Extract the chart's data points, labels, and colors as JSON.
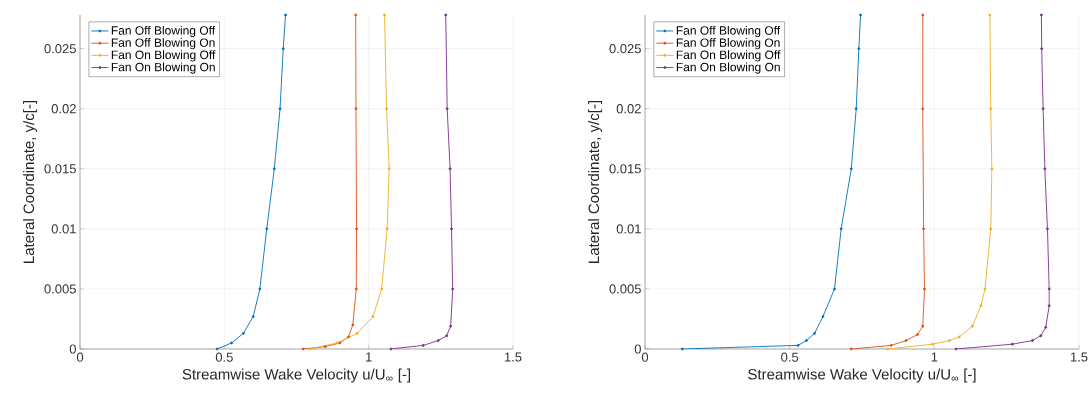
{
  "chart_data": [
    {
      "type": "line",
      "xlabel": "Streamwise Wake Velocity u/U$_{∞}$ [-]",
      "ylabel": "Lateral Coordinate, y/c[-]",
      "xlim": [
        0,
        1.5
      ],
      "ylim": [
        0,
        0.0278
      ],
      "xticks": [
        0,
        0.5,
        1,
        1.5
      ],
      "yticks": [
        0,
        0.005,
        0.01,
        0.015,
        0.02,
        0.025
      ],
      "grid": true,
      "legend": "top left",
      "marker": "circle",
      "line_style": "solid",
      "series": [
        {
          "name": "Fan Off Blowing Off",
          "color": "#0072bd",
          "x": [
            0.475,
            0.525,
            0.566,
            0.6,
            0.623,
            0.647,
            0.673,
            0.693,
            0.704,
            0.712
          ],
          "values": [
            0,
            0.0005,
            0.0013,
            0.0027,
            0.005,
            0.01,
            0.015,
            0.02,
            0.025,
            0.0278
          ]
        },
        {
          "name": "Fan Off Blowing On",
          "color": "#d95319",
          "x": [
            0.773,
            0.85,
            0.9,
            0.93,
            0.945,
            0.957,
            0.958,
            0.956,
            0.955
          ],
          "values": [
            0,
            0.0002,
            0.0005,
            0.001,
            0.002,
            0.005,
            0.01,
            0.02,
            0.0278
          ]
        },
        {
          "name": "Fan On Blowing Off",
          "color": "#edb120",
          "x": [
            0.797,
            0.89,
            0.96,
            1.015,
            1.045,
            1.064,
            1.071,
            1.062,
            1.055
          ],
          "values": [
            0,
            0.0005,
            0.0013,
            0.0027,
            0.005,
            0.01,
            0.015,
            0.02,
            0.0278
          ]
        },
        {
          "name": "Fan On Blowing On",
          "color": "#7e2f8e",
          "x": [
            1.077,
            1.189,
            1.241,
            1.27,
            1.284,
            1.291,
            1.287,
            1.282,
            1.272,
            1.267
          ],
          "values": [
            0,
            0.0003,
            0.0007,
            0.0011,
            0.0019,
            0.005,
            0.01,
            0.015,
            0.02,
            0.0278
          ]
        }
      ]
    },
    {
      "type": "line",
      "xlabel": "Streamwise Wake Velocity u/U$_{∞}$ [-]",
      "ylabel": "Lateral Coordinate, y/c[-]",
      "xlim": [
        0,
        1.5
      ],
      "ylim": [
        0,
        0.0278
      ],
      "xticks": [
        0,
        0.5,
        1,
        1.5
      ],
      "yticks": [
        0,
        0.005,
        0.01,
        0.015,
        0.02,
        0.025
      ],
      "grid": true,
      "legend": "top left",
      "marker": "circle",
      "line_style": "solid",
      "series": [
        {
          "name": "Fan Off Blowing Off",
          "color": "#0072bd",
          "x": [
            0.129,
            0.529,
            0.558,
            0.586,
            0.615,
            0.655,
            0.678,
            0.713,
            0.73,
            0.739,
            0.745
          ],
          "values": [
            0,
            0.0003,
            0.0007,
            0.0013,
            0.0027,
            0.005,
            0.01,
            0.015,
            0.02,
            0.025,
            0.0278
          ]
        },
        {
          "name": "Fan Off Blowing On",
          "color": "#d95319",
          "x": [
            0.713,
            0.851,
            0.902,
            0.942,
            0.96,
            0.966,
            0.963,
            0.96,
            0.96
          ],
          "values": [
            0,
            0.0003,
            0.0007,
            0.0012,
            0.0019,
            0.005,
            0.01,
            0.02,
            0.0278
          ]
        },
        {
          "name": "Fan On Blowing Off",
          "color": "#edb120",
          "x": [
            0.839,
            0.994,
            1.052,
            1.086,
            1.132,
            1.161,
            1.175,
            1.195,
            1.199,
            1.195,
            1.192
          ],
          "values": [
            0,
            0.0004,
            0.0007,
            0.001,
            0.0019,
            0.0036,
            0.005,
            0.01,
            0.015,
            0.02,
            0.0278
          ]
        },
        {
          "name": "Fan On Blowing On",
          "color": "#7e2f8e",
          "x": [
            1.075,
            1.27,
            1.339,
            1.368,
            1.385,
            1.397,
            1.397,
            1.391,
            1.382,
            1.376,
            1.371,
            1.37
          ],
          "values": [
            0,
            0.0004,
            0.0007,
            0.0011,
            0.0018,
            0.0036,
            0.005,
            0.01,
            0.015,
            0.02,
            0.025,
            0.0278
          ]
        }
      ]
    }
  ]
}
